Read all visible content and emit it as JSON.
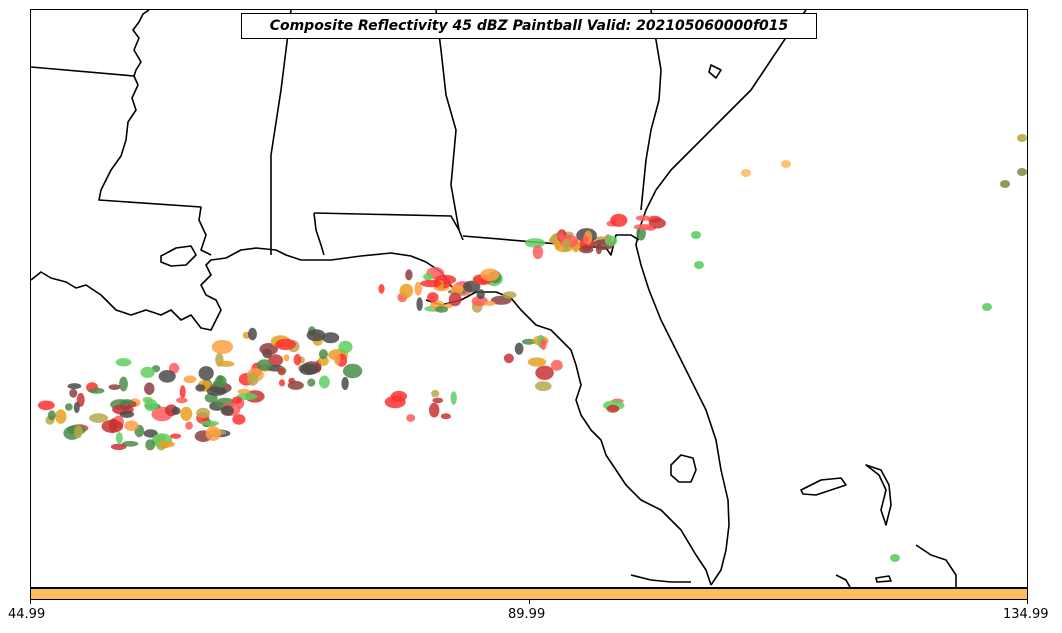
{
  "title": "Composite Reflectivity 45 dBZ Paintball Valid: 202105060000f015",
  "colorbar": {
    "color": "#fdbe60",
    "ticks": [
      "44.99",
      "89.99",
      "134.99"
    ]
  },
  "palette": {
    "member_colors": [
      "#4a4a4a",
      "#ff5a5a",
      "#ff9f43",
      "#5fcf5f",
      "#4a8c4a",
      "#b8a84a",
      "#c83232",
      "#e8a020",
      "#8b4040",
      "#ff3030"
    ]
  }
}
